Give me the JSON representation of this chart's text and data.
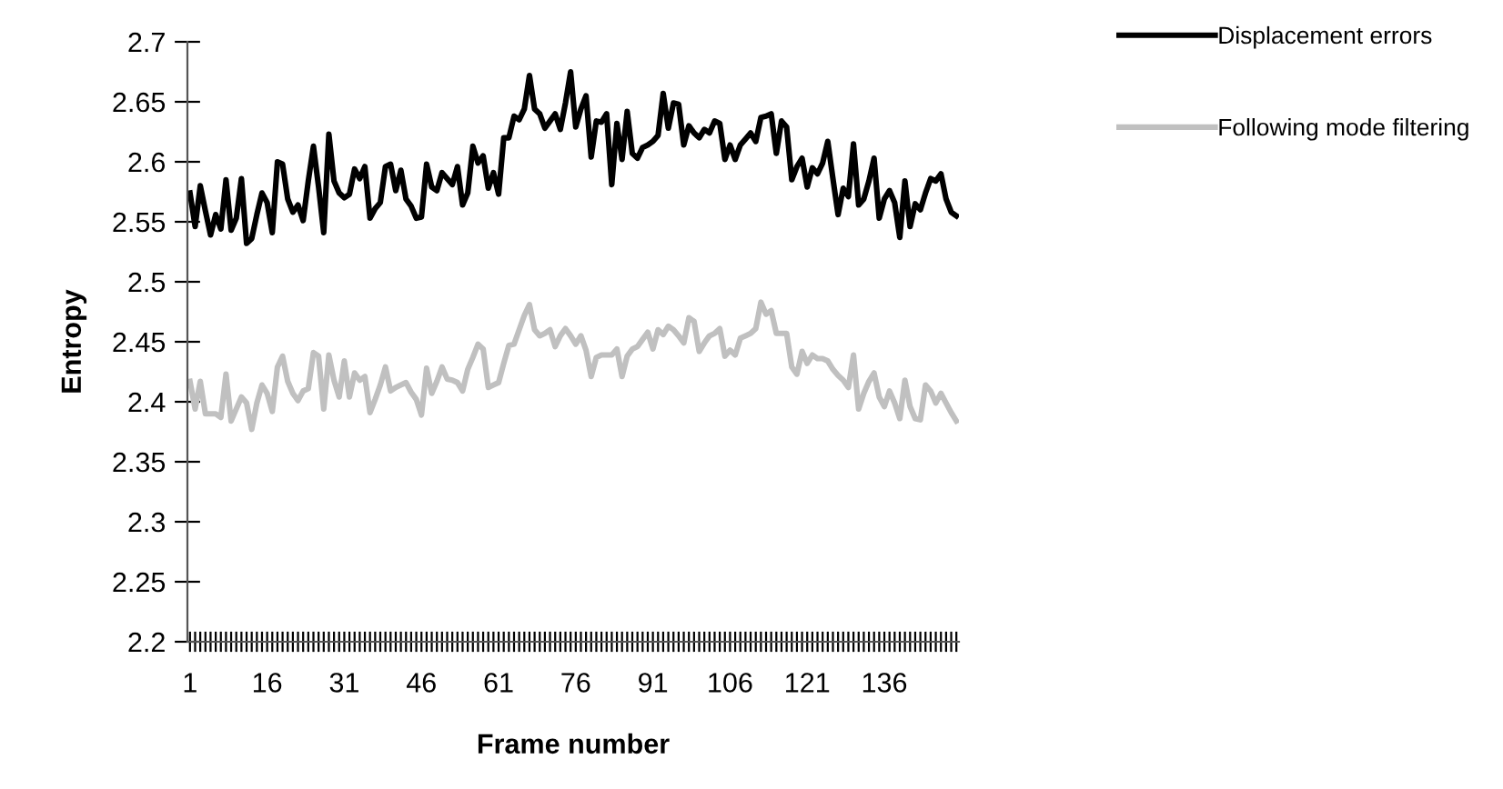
{
  "chart_data": {
    "type": "line",
    "xlabel": "Frame number",
    "ylabel": "Entropy",
    "categories": [
      "1",
      null,
      null,
      null,
      null,
      null,
      null,
      null,
      null,
      null,
      null,
      null,
      null,
      null,
      null,
      "16",
      null,
      null,
      null,
      null,
      null,
      null,
      null,
      null,
      null,
      null,
      null,
      null,
      null,
      null,
      "31",
      null,
      null,
      null,
      null,
      null,
      null,
      null,
      null,
      null,
      null,
      null,
      null,
      null,
      null,
      "46",
      null,
      null,
      null,
      null,
      null,
      null,
      null,
      null,
      null,
      null,
      null,
      null,
      null,
      null,
      "61",
      null,
      null,
      null,
      null,
      null,
      null,
      null,
      null,
      null,
      null,
      null,
      null,
      null,
      null,
      "76",
      null,
      null,
      null,
      null,
      null,
      null,
      null,
      null,
      null,
      null,
      null,
      null,
      null,
      null,
      "91",
      null,
      null,
      null,
      null,
      null,
      null,
      null,
      null,
      null,
      null,
      null,
      null,
      null,
      null,
      "106",
      null,
      null,
      null,
      null,
      null,
      null,
      null,
      null,
      null,
      null,
      null,
      null,
      null,
      null,
      "121",
      null,
      null,
      null,
      null,
      null,
      null,
      null,
      null,
      null,
      null,
      null,
      null,
      null,
      null,
      "136",
      null,
      null,
      null,
      null,
      null,
      null,
      null,
      null,
      null,
      null,
      null,
      null,
      null,
      null
    ],
    "series": [
      {
        "name": "Displacement errors",
        "color": "#000000",
        "values": [
          2.574,
          2.546,
          2.58,
          2.559,
          2.539,
          2.556,
          2.544,
          2.585,
          2.543,
          2.553,
          2.586,
          2.532,
          2.536,
          2.556,
          2.574,
          2.566,
          2.541,
          2.6,
          2.598,
          2.569,
          2.558,
          2.564,
          2.551,
          2.584,
          2.613,
          2.579,
          2.541,
          2.623,
          2.584,
          2.574,
          2.57,
          2.573,
          2.594,
          2.586,
          2.596,
          2.553,
          2.561,
          2.566,
          2.596,
          2.598,
          2.576,
          2.593,
          2.569,
          2.563,
          2.553,
          2.554,
          2.598,
          2.579,
          2.576,
          2.591,
          2.586,
          2.581,
          2.596,
          2.564,
          2.574,
          2.613,
          2.599,
          2.605,
          2.578,
          2.591,
          2.573,
          2.62,
          2.62,
          2.638,
          2.635,
          2.644,
          2.672,
          2.644,
          2.64,
          2.628,
          2.634,
          2.64,
          2.627,
          2.649,
          2.675,
          2.629,
          2.644,
          2.655,
          2.604,
          2.634,
          2.633,
          2.64,
          2.581,
          2.632,
          2.602,
          2.642,
          2.607,
          2.603,
          2.612,
          2.614,
          2.617,
          2.622,
          2.657,
          2.628,
          2.649,
          2.648,
          2.614,
          2.63,
          2.624,
          2.62,
          2.627,
          2.624,
          2.634,
          2.632,
          2.602,
          2.614,
          2.602,
          2.614,
          2.619,
          2.624,
          2.617,
          2.637,
          2.638,
          2.64,
          2.607,
          2.634,
          2.629,
          2.585,
          2.596,
          2.603,
          2.579,
          2.595,
          2.59,
          2.599,
          2.617,
          2.586,
          2.556,
          2.578,
          2.571,
          2.615,
          2.564,
          2.569,
          2.584,
          2.603,
          2.553,
          2.569,
          2.576,
          2.566,
          2.537,
          2.584,
          2.546,
          2.565,
          2.56,
          2.574,
          2.586,
          2.584,
          2.59,
          2.569,
          2.558,
          2.555
        ]
      },
      {
        "name": "Following mode filtering",
        "color": "#c0c0c0",
        "values": [
          2.417,
          2.394,
          2.417,
          2.39,
          2.39,
          2.39,
          2.387,
          2.423,
          2.384,
          2.394,
          2.404,
          2.399,
          2.377,
          2.399,
          2.414,
          2.407,
          2.392,
          2.429,
          2.438,
          2.417,
          2.407,
          2.401,
          2.409,
          2.411,
          2.441,
          2.438,
          2.394,
          2.439,
          2.418,
          2.404,
          2.434,
          2.404,
          2.424,
          2.418,
          2.421,
          2.391,
          2.402,
          2.414,
          2.429,
          2.409,
          2.412,
          2.414,
          2.416,
          2.408,
          2.402,
          2.389,
          2.428,
          2.407,
          2.417,
          2.429,
          2.419,
          2.418,
          2.416,
          2.409,
          2.427,
          2.437,
          2.448,
          2.444,
          2.412,
          2.414,
          2.416,
          2.432,
          2.447,
          2.448,
          2.46,
          2.472,
          2.481,
          2.46,
          2.455,
          2.457,
          2.46,
          2.446,
          2.455,
          2.461,
          2.455,
          2.448,
          2.455,
          2.443,
          2.421,
          2.437,
          2.439,
          2.439,
          2.439,
          2.444,
          2.421,
          2.438,
          2.444,
          2.446,
          2.452,
          2.458,
          2.444,
          2.46,
          2.456,
          2.463,
          2.46,
          2.455,
          2.449,
          2.47,
          2.467,
          2.442,
          2.449,
          2.455,
          2.457,
          2.461,
          2.438,
          2.443,
          2.439,
          2.453,
          2.455,
          2.457,
          2.461,
          2.483,
          2.473,
          2.476,
          2.457,
          2.457,
          2.457,
          2.429,
          2.423,
          2.442,
          2.432,
          2.439,
          2.436,
          2.436,
          2.434,
          2.427,
          2.422,
          2.418,
          2.412,
          2.439,
          2.394,
          2.407,
          2.417,
          2.424,
          2.404,
          2.396,
          2.409,
          2.399,
          2.386,
          2.418,
          2.396,
          2.386,
          2.385,
          2.414,
          2.409,
          2.399,
          2.407,
          2.399,
          2.391,
          2.384
        ]
      }
    ],
    "ylim": [
      2.2,
      2.7
    ],
    "yticks": [
      2.2,
      2.25,
      2.3,
      2.35,
      2.4,
      2.45,
      2.5,
      2.55,
      2.6,
      2.65,
      2.7
    ],
    "grid": false,
    "legend": "top right",
    "marker": "none",
    "line_style": "solid"
  }
}
